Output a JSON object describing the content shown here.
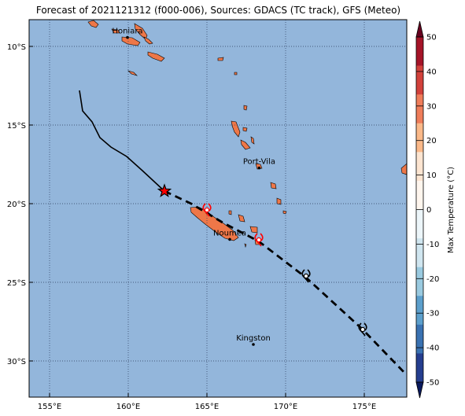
{
  "title": "Forecast of 2021121312 (f000-006), Sources: GDACS (TC track), GFS (Meteo)",
  "map": {
    "lon_range": [
      153.7,
      177.7
    ],
    "lat_range": [
      -32.3,
      -8.3
    ],
    "lon_ticks": [
      {
        "value": 155,
        "label": "155°E"
      },
      {
        "value": 160,
        "label": "160°E"
      },
      {
        "value": 165,
        "label": "165°E"
      },
      {
        "value": 170,
        "label": "170°E"
      },
      {
        "value": 175,
        "label": "175°E"
      }
    ],
    "lat_ticks": [
      {
        "value": -10,
        "label": "10°S"
      },
      {
        "value": -15,
        "label": "15°S"
      },
      {
        "value": -20,
        "label": "20°S"
      },
      {
        "value": -25,
        "label": "25°S"
      },
      {
        "value": -30,
        "label": "30°S"
      }
    ],
    "grid": true,
    "ocean_color": "#93b6db",
    "land_color": "#ee7748"
  },
  "cities": [
    {
      "name": "Honiara",
      "lon": 159.95,
      "lat": -9.43
    },
    {
      "name": "Port-Vila",
      "lon": 168.32,
      "lat": -17.73
    },
    {
      "name": "Noumea",
      "lon": 166.45,
      "lat": -22.27
    },
    {
      "name": "Kingston",
      "lon": 167.95,
      "lat": -28.95
    }
  ],
  "track": {
    "past": [
      [
        156.9,
        -12.8
      ],
      [
        157.1,
        -14.1
      ],
      [
        157.7,
        -14.8
      ],
      [
        158.2,
        -15.8
      ],
      [
        158.9,
        -16.4
      ],
      [
        159.9,
        -17.0
      ],
      [
        160.9,
        -17.9
      ],
      [
        162.3,
        -19.2
      ]
    ],
    "current": [
      162.3,
      -19.2
    ],
    "forecast": [
      [
        162.3,
        -19.2
      ],
      [
        164.0,
        -20.0
      ],
      [
        166.0,
        -21.2
      ],
      [
        168.3,
        -22.4
      ],
      [
        171.3,
        -24.7
      ],
      [
        174.9,
        -28.0
      ],
      [
        177.7,
        -30.9
      ]
    ],
    "storm_symbols": [
      {
        "lon": 165.0,
        "lat": -20.4,
        "color": "#ff0000"
      },
      {
        "lon": 168.3,
        "lat": -22.3,
        "color": "#ff0000"
      },
      {
        "lon": 171.3,
        "lat": -24.6,
        "color": "#000000"
      },
      {
        "lon": 174.9,
        "lat": -28.0,
        "color": "#000000"
      }
    ]
  },
  "colorbar": {
    "label": "Max Temperature (°C)",
    "ticks": [
      50,
      40,
      30,
      20,
      10,
      0,
      -10,
      -20,
      -30,
      -40,
      -50
    ],
    "colors": [
      "#67001f",
      "#a51428",
      "#d2413b",
      "#ef7d5a",
      "#fbb989",
      "#fde5d1",
      "#fff6ee",
      "#edf6fa",
      "#d0e6f0",
      "#9acae0",
      "#5c9fcc",
      "#3a72b2",
      "#253e8f",
      "#0a1a5e"
    ]
  }
}
